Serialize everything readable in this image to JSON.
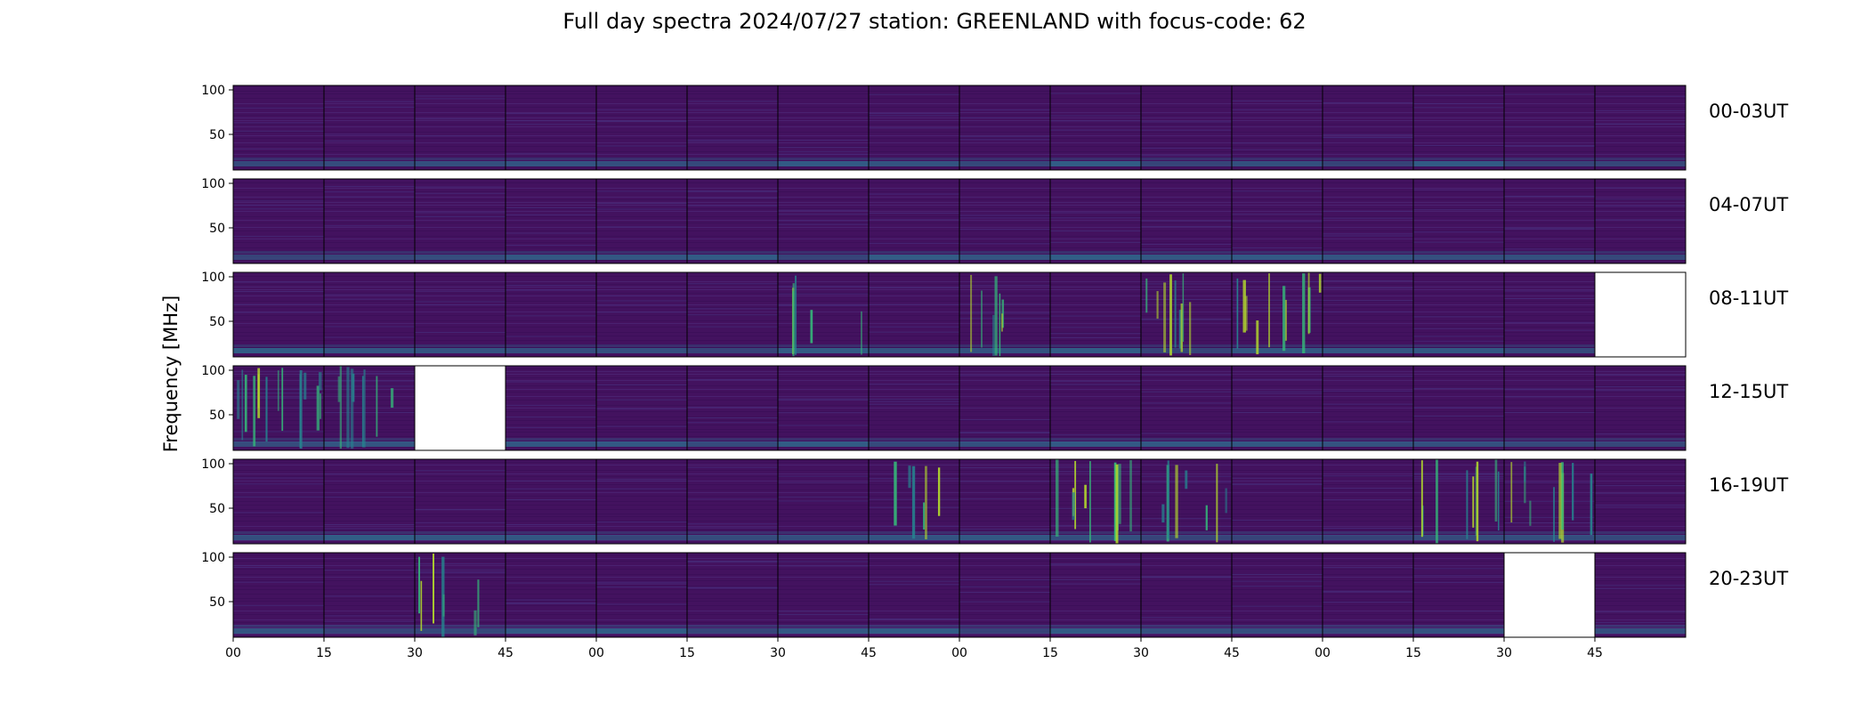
{
  "chart_data": {
    "type": "heatmap",
    "title": "Full day spectra 2024/07/27 station: GREENLAND with focus-code: 62",
    "ylabel": "Frequency [MHz]",
    "colormap": "viridis",
    "y_ticks": [
      "100",
      "50"
    ],
    "ylim": [
      10,
      105
    ],
    "x_ticks": [
      "00",
      "15",
      "30",
      "45",
      "00",
      "15",
      "30",
      "45",
      "00",
      "15",
      "30",
      "45",
      "00",
      "15",
      "30",
      "45"
    ],
    "rows": [
      {
        "label": "00-03UT",
        "missing_panels": [],
        "burst_panels": []
      },
      {
        "label": "04-07UT",
        "missing_panels": [],
        "burst_panels": []
      },
      {
        "label": "08-11UT",
        "missing_panels": [
          15
        ],
        "burst_panels": [
          6,
          8,
          10,
          11
        ]
      },
      {
        "label": "12-15UT",
        "missing_panels": [
          2
        ],
        "burst_panels": [
          0,
          1
        ]
      },
      {
        "label": "16-19UT",
        "missing_panels": [],
        "burst_panels": [
          7,
          9,
          10,
          13,
          14
        ]
      },
      {
        "label": "20-23UT",
        "missing_panels": [
          14
        ],
        "burst_panels": [
          2
        ]
      }
    ]
  }
}
